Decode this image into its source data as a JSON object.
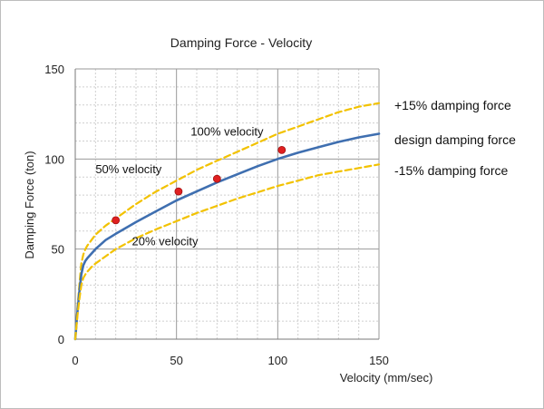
{
  "chart_data": {
    "type": "line",
    "title": "Damping Force - Velocity",
    "xlabel": "Velocity (mm/sec)",
    "ylabel": "Damping Force (ton)",
    "xlim": [
      0,
      150
    ],
    "ylim": [
      0,
      150
    ],
    "xticks": [
      "0",
      "50",
      "100",
      "150"
    ],
    "yticks": [
      "0",
      "50",
      "100",
      "150"
    ],
    "grid": {
      "major": true,
      "minor": true
    },
    "colors": {
      "design": "#3f6fb0",
      "bounds": "#f2c200",
      "points": "#e02020",
      "grid_major": "#9a9a9a",
      "grid_minor": "#cfcfcf"
    },
    "series": [
      {
        "name": "+15% damping force",
        "style": "dashed",
        "x": [
          0,
          1,
          2,
          3,
          4,
          5,
          6,
          8,
          10,
          15,
          20,
          30,
          40,
          50,
          60,
          70,
          80,
          90,
          100,
          110,
          120,
          130,
          140,
          150
        ],
        "y": [
          0,
          16,
          30,
          42,
          47,
          50,
          52,
          55,
          58,
          63,
          67,
          75,
          82,
          88,
          94,
          99,
          104,
          109,
          114,
          118,
          122,
          126,
          129,
          131
        ]
      },
      {
        "name": "design damping force",
        "style": "solid",
        "x": [
          0,
          1,
          2,
          3,
          4,
          5,
          6,
          8,
          10,
          15,
          20,
          30,
          40,
          50,
          60,
          70,
          80,
          90,
          100,
          110,
          120,
          130,
          140,
          150
        ],
        "y": [
          0,
          14,
          26,
          36,
          41,
          43.5,
          45,
          47.5,
          50,
          55,
          58.5,
          65,
          71,
          77,
          82,
          87,
          91.5,
          96,
          100,
          103.5,
          106.5,
          109.5,
          112,
          114
        ]
      },
      {
        "name": "-15% damping force",
        "style": "dashed",
        "x": [
          0,
          1,
          2,
          3,
          4,
          5,
          6,
          8,
          10,
          15,
          20,
          30,
          40,
          50,
          60,
          70,
          80,
          90,
          100,
          110,
          120,
          130,
          140,
          150
        ],
        "y": [
          0,
          12,
          22,
          30,
          34,
          36,
          37.5,
          40,
          42,
          46,
          50,
          56,
          61,
          65.5,
          70,
          74,
          78,
          81.5,
          85,
          88,
          91,
          93,
          95,
          97
        ]
      }
    ],
    "points": {
      "x": [
        20,
        51,
        70,
        102
      ],
      "y": [
        66,
        82,
        89,
        105
      ]
    },
    "annotations": [
      {
        "text": "100% velocity",
        "x": 57,
        "y": 113
      },
      {
        "text": "50% velocity",
        "x": 10,
        "y": 92
      },
      {
        "text": "20% velocity",
        "x": 28,
        "y": 52
      }
    ],
    "legend_labels": [
      "+15% damping force",
      "design damping force",
      "-15% damping force"
    ]
  }
}
